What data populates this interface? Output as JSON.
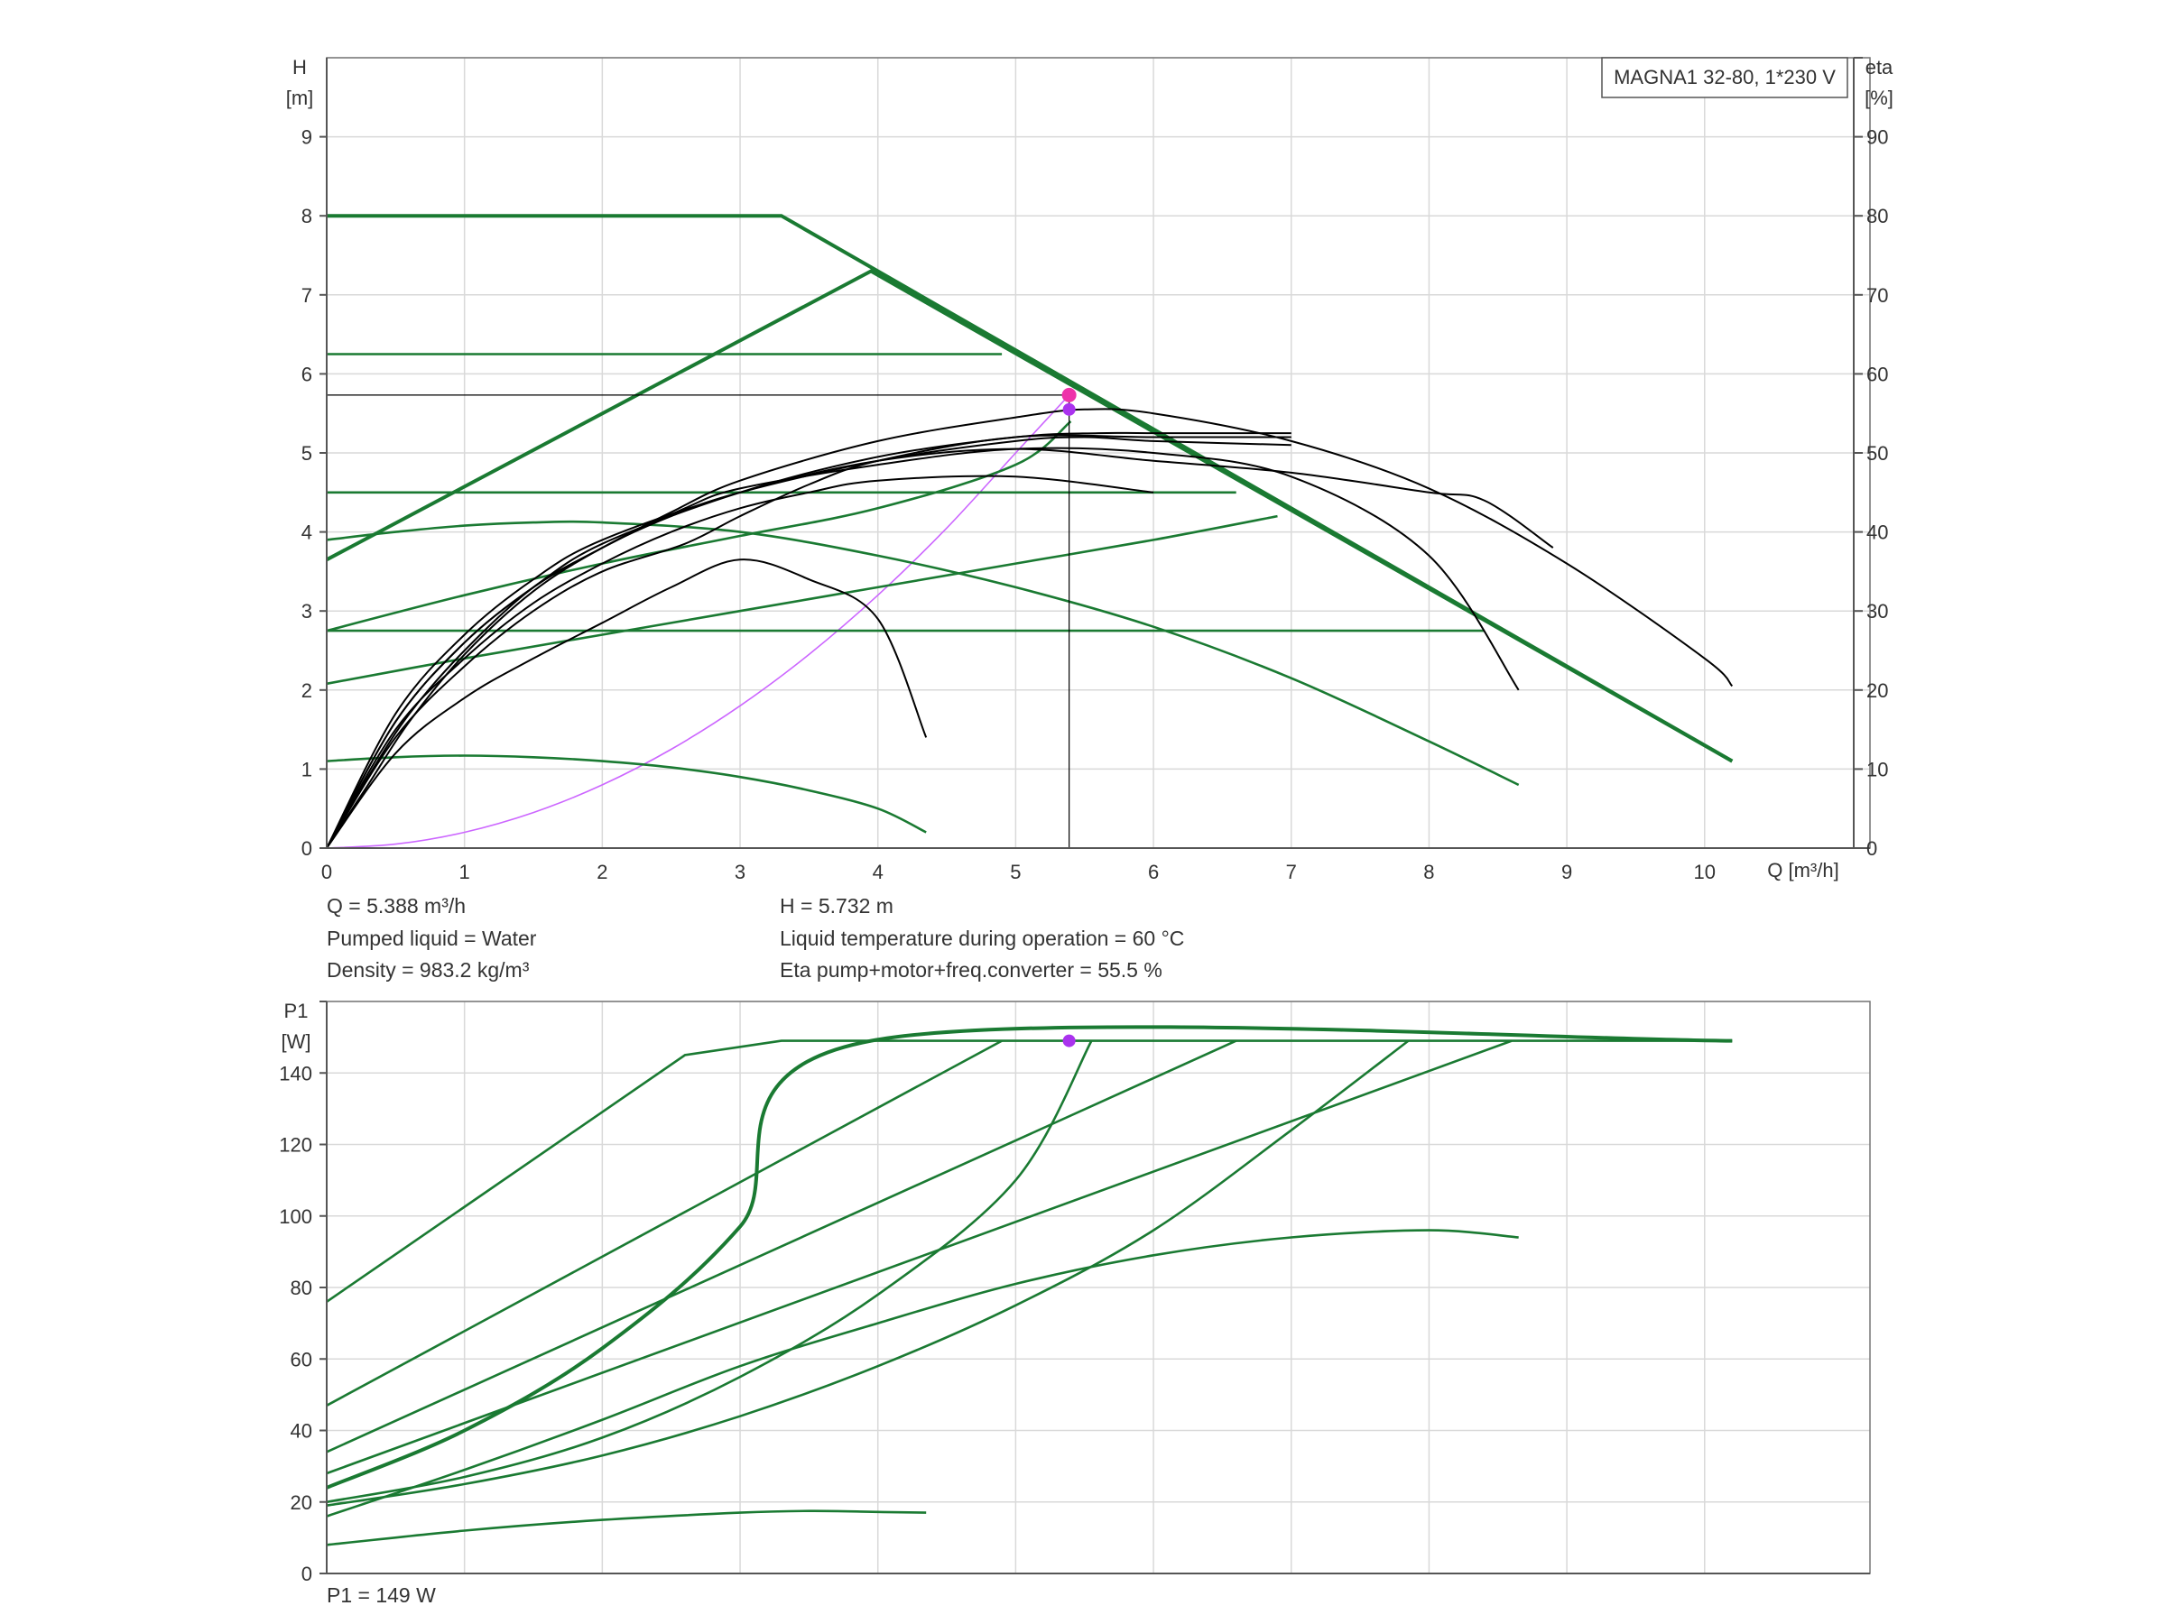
{
  "chart_data": [
    {
      "type": "line",
      "label": "MAGNA1 32-80, 1*230 V",
      "xlabel": "Q [m³/h]",
      "ylabel_lines": [
        "H",
        "[m]"
      ],
      "y2label_lines": [
        "eta",
        "[%]"
      ],
      "xlim": [
        0,
        11.2
      ],
      "ylim": [
        0,
        10
      ],
      "y2lim": [
        0,
        100
      ],
      "x_ticks": [
        0,
        1,
        2,
        3,
        4,
        5,
        6,
        7,
        8,
        9,
        10
      ],
      "y_ticks": [
        0,
        1,
        2,
        3,
        4,
        5,
        6,
        7,
        8,
        9
      ],
      "y2_ticks": [
        0,
        10,
        20,
        30,
        40,
        50,
        60,
        70,
        80,
        90
      ],
      "grid": true,
      "colors": {
        "head": "#1a7a32",
        "efficiency": "#000000",
        "system": "#cc66ff",
        "duty_point": "#ee33aa",
        "duty_point_eta": "#aa33ee",
        "reference": "#000000"
      },
      "head_curves": [
        {
          "points": [
            [
              0,
              8.0
            ],
            [
              3.3,
              8.0
            ],
            [
              10.2,
              1.1
            ]
          ],
          "emphasis": true
        },
        {
          "points": [
            [
              0,
              3.65
            ],
            [
              3.95,
              7.3
            ],
            [
              10.2,
              1.1
            ]
          ],
          "emphasis": true
        },
        {
          "points": [
            [
              0,
              6.25
            ],
            [
              4.9,
              6.25
            ]
          ]
        },
        {
          "points": [
            [
              0,
              4.5
            ],
            [
              6.6,
              4.5
            ]
          ]
        },
        {
          "points": [
            [
              0,
              2.75
            ],
            [
              8.4,
              2.75
            ]
          ]
        },
        {
          "points": [
            [
              0,
              3.9
            ],
            [
              0.5,
              4.0
            ],
            [
              1,
              4.08
            ],
            [
              1.5,
              4.12
            ],
            [
              2,
              4.12
            ],
            [
              3,
              4.0
            ],
            [
              4,
              3.7
            ],
            [
              5,
              3.3
            ],
            [
              6,
              2.8
            ],
            [
              7,
              2.15
            ],
            [
              8,
              1.35
            ],
            [
              8.65,
              0.8
            ]
          ]
        },
        {
          "points": [
            [
              0,
              1.1
            ],
            [
              0.5,
              1.15
            ],
            [
              1,
              1.17
            ],
            [
              1.5,
              1.15
            ],
            [
              2,
              1.1
            ],
            [
              2.5,
              1.02
            ],
            [
              3,
              0.9
            ],
            [
              3.5,
              0.73
            ],
            [
              4,
              0.5
            ],
            [
              4.35,
              0.2
            ]
          ]
        },
        {
          "points": [
            [
              0,
              2.75
            ],
            [
              1,
              3.2
            ],
            [
              2,
              3.6
            ],
            [
              3,
              3.95
            ],
            [
              4,
              4.3
            ],
            [
              5,
              4.85
            ],
            [
              5.4,
              5.4
            ]
          ]
        },
        {
          "points": [
            [
              0,
              2.08
            ],
            [
              1,
              2.4
            ],
            [
              2,
              2.7
            ],
            [
              3,
              3.0
            ],
            [
              4,
              3.3
            ],
            [
              5,
              3.6
            ],
            [
              6,
              3.9
            ],
            [
              6.9,
              4.2
            ]
          ]
        }
      ],
      "efficiency_curves": [
        {
          "points": [
            [
              0,
              0
            ],
            [
              0.5,
              17
            ],
            [
              1,
              27
            ],
            [
              1.5,
              34
            ],
            [
              2,
              39
            ],
            [
              3,
              45
            ],
            [
              4,
              49
            ],
            [
              5,
              50.5
            ],
            [
              6,
              49
            ],
            [
              7,
              47.5
            ],
            [
              8,
              45
            ],
            [
              8.4,
              44
            ],
            [
              8.9,
              38
            ]
          ]
        },
        {
          "points": [
            [
              0,
              0
            ],
            [
              0.5,
              16
            ],
            [
              1,
              26
            ],
            [
              1.5,
              33
            ],
            [
              2,
              38
            ],
            [
              2.6,
              43
            ],
            [
              3,
              45.5
            ],
            [
              4,
              48.5
            ],
            [
              5,
              50.5
            ],
            [
              6,
              50
            ],
            [
              7,
              47
            ],
            [
              8,
              37
            ],
            [
              8.65,
              20
            ]
          ]
        },
        {
          "points": [
            [
              0,
              0
            ],
            [
              0.5,
              14
            ],
            [
              1,
              23
            ],
            [
              1.5,
              30
            ],
            [
              2,
              35
            ],
            [
              2.6,
              38.5
            ],
            [
              3,
              42
            ],
            [
              3.5,
              46
            ],
            [
              4,
              49
            ],
            [
              5,
              52
            ],
            [
              6,
              52
            ],
            [
              7,
              52
            ]
          ]
        },
        {
          "points": [
            [
              0,
              0
            ],
            [
              0.5,
              15
            ],
            [
              1,
              24
            ],
            [
              1.5,
              31
            ],
            [
              2,
              36
            ],
            [
              2.5,
              40
            ],
            [
              3,
              43
            ],
            [
              3.5,
              45
            ],
            [
              4,
              46.5
            ],
            [
              5,
              47
            ],
            [
              6,
              45
            ]
          ]
        },
        {
          "points": [
            [
              0,
              0
            ],
            [
              0.5,
              12
            ],
            [
              1,
              19
            ],
            [
              1.5,
              24
            ],
            [
              2,
              28.5
            ],
            [
              2.5,
              33
            ],
            [
              3,
              36.5
            ],
            [
              3.5,
              34
            ],
            [
              4,
              29
            ],
            [
              4.35,
              14
            ]
          ]
        },
        {
          "points": [
            [
              0,
              0
            ],
            [
              0.5,
              16
            ],
            [
              1,
              26
            ],
            [
              1.5,
              33
            ],
            [
              2,
              38.5
            ],
            [
              3,
              45
            ],
            [
              4,
              49.5
            ],
            [
              5,
              52
            ],
            [
              5.6,
              52.5
            ],
            [
              6,
              52.5
            ],
            [
              7,
              52.5
            ]
          ]
        },
        {
          "points": [
            [
              0,
              0
            ],
            [
              0.3,
              9
            ],
            [
              0.6,
              17
            ],
            [
              1,
              25
            ],
            [
              1.5,
              33
            ],
            [
              2,
              38
            ],
            [
              2.5,
              42.5
            ],
            [
              3,
              46.5
            ],
            [
              4,
              51.5
            ],
            [
              5,
              54.5
            ],
            [
              5.5,
              55.5
            ],
            [
              6,
              55
            ],
            [
              7,
              51.5
            ],
            [
              8,
              45.5
            ],
            [
              9,
              36
            ],
            [
              10,
              24
            ],
            [
              10.2,
              20.5
            ]
          ]
        },
        {
          "points": [
            [
              0,
              0
            ],
            [
              0.3,
              8
            ],
            [
              0.6,
              16
            ],
            [
              1,
              24.5
            ],
            [
              1.5,
              32.5
            ],
            [
              2,
              38
            ],
            [
              2.5,
              42
            ],
            [
              3,
              45
            ],
            [
              4,
              49
            ],
            [
              5,
              51.5
            ],
            [
              5.5,
              52
            ],
            [
              6,
              51.5
            ],
            [
              7,
              51
            ]
          ]
        }
      ],
      "system_curve": [
        [
          0,
          0
        ],
        [
          0.5,
          0.05
        ],
        [
          1,
          0.2
        ],
        [
          1.5,
          0.45
        ],
        [
          2,
          0.8
        ],
        [
          2.5,
          1.25
        ],
        [
          3,
          1.8
        ],
        [
          3.5,
          2.45
        ],
        [
          4,
          3.2
        ],
        [
          4.5,
          4.05
        ],
        [
          5,
          5.0
        ],
        [
          5.388,
          5.732
        ]
      ],
      "duty_point": {
        "Q": 5.388,
        "H": 5.732,
        "eta": 55.5
      },
      "reference_lines": {
        "H": 5.732,
        "Q": 5.388
      }
    },
    {
      "type": "line",
      "ylabel_lines": [
        "P1",
        "[W]"
      ],
      "xlim": [
        0,
        11.2
      ],
      "ylim": [
        0,
        160
      ],
      "y_ticks": [
        0,
        20,
        40,
        60,
        80,
        100,
        120,
        140
      ],
      "grid": true,
      "colors": {
        "power": "#1a7a32",
        "duty_point": "#aa33ee"
      },
      "power_curves": [
        {
          "points": [
            [
              0,
              76
            ],
            [
              2.6,
              145
            ],
            [
              3.3,
              149
            ],
            [
              10.2,
              149
            ]
          ]
        },
        {
          "points": [
            [
              0,
              24
            ],
            [
              1,
              40
            ],
            [
              2,
              63
            ],
            [
              3,
              97
            ],
            [
              3.95,
              149
            ],
            [
              10.2,
              149
            ]
          ],
          "emphasis": true
        },
        {
          "points": [
            [
              0,
              47
            ],
            [
              4.9,
              149
            ]
          ]
        },
        {
          "points": [
            [
              0,
              34
            ],
            [
              6.6,
              149
            ]
          ]
        },
        {
          "points": [
            [
              0,
              28
            ],
            [
              8.6,
              149
            ]
          ]
        },
        {
          "points": [
            [
              0,
              20
            ],
            [
              1,
              27
            ],
            [
              2,
              38
            ],
            [
              3,
              55
            ],
            [
              4,
              78
            ],
            [
              5,
              110
            ],
            [
              5.55,
              149
            ]
          ]
        },
        {
          "points": [
            [
              0,
              19
            ],
            [
              1,
              25
            ],
            [
              2,
              33
            ],
            [
              3,
              44
            ],
            [
              4,
              58
            ],
            [
              5,
              75
            ],
            [
              6,
              96
            ],
            [
              7,
              124
            ],
            [
              7.85,
              149
            ]
          ]
        },
        {
          "points": [
            [
              0,
              16
            ],
            [
              1,
              29
            ],
            [
              2,
              43
            ],
            [
              3,
              58
            ],
            [
              4,
              70
            ],
            [
              5,
              81
            ],
            [
              6,
              89
            ],
            [
              7,
              94
            ],
            [
              8,
              96
            ],
            [
              8.65,
              94
            ]
          ]
        },
        {
          "points": [
            [
              0,
              8
            ],
            [
              1,
              12
            ],
            [
              2,
              15
            ],
            [
              3,
              17
            ],
            [
              3.5,
              17.5
            ],
            [
              4,
              17.2
            ],
            [
              4.35,
              17
            ]
          ]
        }
      ],
      "duty_point": {
        "Q": 5.388,
        "P1": 149
      }
    }
  ],
  "info": {
    "q": "Q = 5.388 m³/h",
    "h": "H = 5.732 m",
    "liquid": "Pumped liquid = Water",
    "temperature": "Liquid temperature during operation = 60 °C",
    "density": "Density = 983.2 kg/m³",
    "eta": "Eta pump+motor+freq.converter = 55.5 %",
    "p1": "P1 = 149 W"
  }
}
